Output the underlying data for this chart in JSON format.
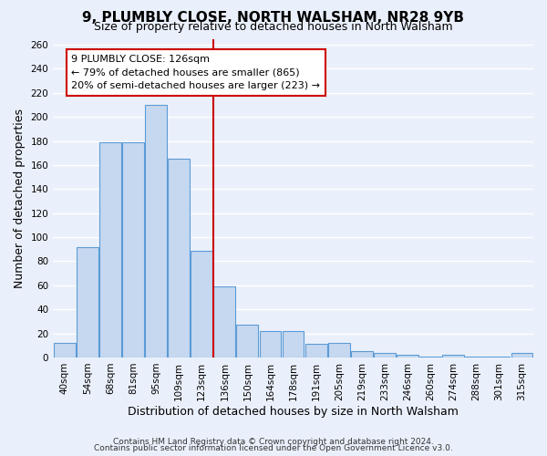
{
  "title": "9, PLUMBLY CLOSE, NORTH WALSHAM, NR28 9YB",
  "subtitle": "Size of property relative to detached houses in North Walsham",
  "xlabel": "Distribution of detached houses by size in North Walsham",
  "ylabel": "Number of detached properties",
  "categories": [
    "40sqm",
    "54sqm",
    "68sqm",
    "81sqm",
    "95sqm",
    "109sqm",
    "123sqm",
    "136sqm",
    "150sqm",
    "164sqm",
    "178sqm",
    "191sqm",
    "205sqm",
    "219sqm",
    "233sqm",
    "246sqm",
    "260sqm",
    "274sqm",
    "288sqm",
    "301sqm",
    "315sqm"
  ],
  "values": [
    12,
    92,
    179,
    179,
    210,
    165,
    89,
    59,
    27,
    22,
    22,
    11,
    12,
    5,
    4,
    2,
    1,
    2,
    1,
    1,
    4
  ],
  "bar_color": "#c5d8f0",
  "bar_edge_color": "#5b9bd5",
  "vline_pos": 6.5,
  "vline_color": "#cc0000",
  "annotation_title": "9 PLUMBLY CLOSE: 126sqm",
  "annotation_line1": "← 79% of detached houses are smaller (865)",
  "annotation_line2": "20% of semi-detached houses are larger (223) →",
  "annotation_box_color": "#ffffff",
  "annotation_box_edge": "#cc0000",
  "ylim": [
    0,
    265
  ],
  "yticks": [
    0,
    20,
    40,
    60,
    80,
    100,
    120,
    140,
    160,
    180,
    200,
    220,
    240,
    260
  ],
  "footer1": "Contains HM Land Registry data © Crown copyright and database right 2024.",
  "footer2": "Contains public sector information licensed under the Open Government Licence v3.0.",
  "bg_color": "#eaf0fb",
  "grid_color": "#ffffff",
  "title_fontsize": 11,
  "subtitle_fontsize": 9,
  "axis_label_fontsize": 9,
  "tick_fontsize": 7.5,
  "footer_fontsize": 6.5
}
